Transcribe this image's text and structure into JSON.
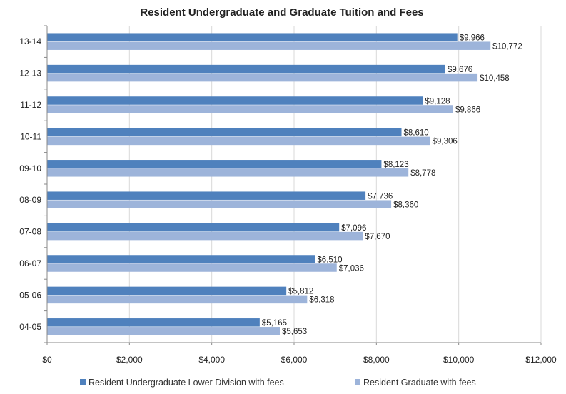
{
  "chart_data": {
    "type": "bar",
    "orientation": "horizontal",
    "title": "Resident Undergraduate and Graduate Tuition and Fees",
    "xlabel": "",
    "ylabel": "",
    "categories": [
      "13-14",
      "12-13",
      "11-12",
      "10-11",
      "09-10",
      "08-09",
      "07-08",
      "06-07",
      "05-06",
      "04-05"
    ],
    "series": [
      {
        "name": "Resident Undergraduate Lower Division with fees",
        "color": "#4f81bd",
        "values": [
          9966,
          9676,
          9128,
          8610,
          8123,
          7736,
          7096,
          6510,
          5812,
          5165
        ],
        "labels": [
          "$9,966",
          "$9,676",
          "$9,128",
          "$8,610",
          "$8,123",
          "$7,736",
          "$7,096",
          "$6,510",
          "$5,812",
          "$5,165"
        ]
      },
      {
        "name": "Resident Graduate with fees",
        "color": "#9db4da",
        "values": [
          10772,
          10458,
          9866,
          9306,
          8778,
          8360,
          7670,
          7036,
          6318,
          5653
        ],
        "labels": [
          "$10,772",
          "$10,458",
          "$9,866",
          "$9,306",
          "$8,778",
          "$8,360",
          "$7,670",
          "$7,036",
          "$6,318",
          "$5,653"
        ]
      }
    ],
    "xlim": [
      0,
      12000
    ],
    "xticks": [
      0,
      2000,
      4000,
      6000,
      8000,
      10000,
      12000
    ],
    "xtick_labels": [
      "$0",
      "$2,000",
      "$4,000",
      "$6,000",
      "$8,000",
      "$10,000",
      "$12,000"
    ],
    "grid": true,
    "grid_color": "#d9d9d9",
    "legend_position": "bottom"
  }
}
